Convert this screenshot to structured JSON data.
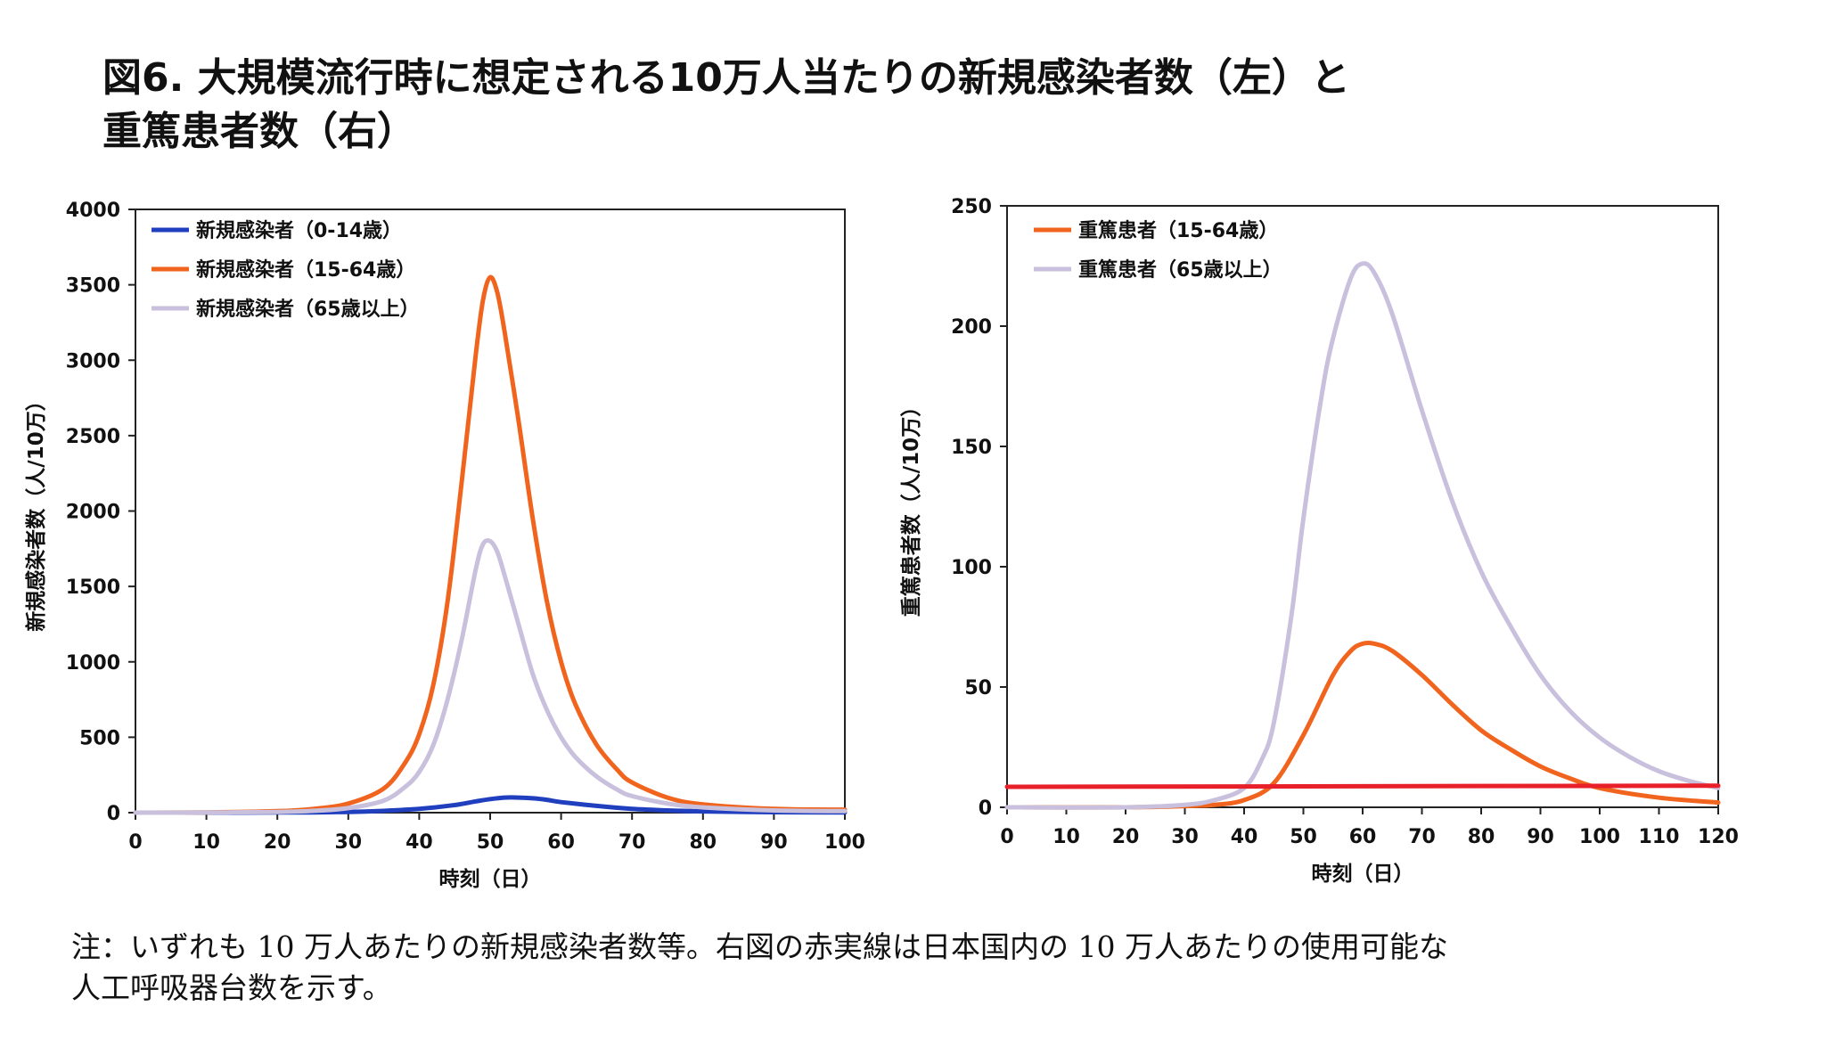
{
  "title_line1": "図6. 大規模流行時に想定される10万人当たりの新規感染者数（左）と",
  "title_line2": "重篤患者数（右）",
  "note_line1": "注：いずれも 10 万人あたりの新規感染者数等。右図の赤実線は日本国内の 10 万人あたりの使用可能な",
  "note_line2": "人工呼吸器台数を示す。",
  "colors": {
    "blue": "#1f3fbf",
    "orange": "#f0641e",
    "lavender": "#c8c0dc",
    "red": "#e8202a"
  },
  "chart_data": [
    {
      "type": "line",
      "ylabel": "新規感染者数（人/10万）",
      "xlabel": "時刻（日）",
      "xlim": [
        0,
        100
      ],
      "ylim": [
        0,
        4000
      ],
      "xticks": [
        0,
        10,
        20,
        30,
        40,
        50,
        60,
        70,
        80,
        90,
        100
      ],
      "yticks": [
        0,
        500,
        1000,
        1500,
        2000,
        2500,
        3000,
        3500,
        4000
      ],
      "legend_position": "top-left",
      "series": [
        {
          "name": "新規感染者（0-14歳）",
          "color": "blue",
          "x": [
            0,
            10,
            20,
            25,
            30,
            35,
            40,
            45,
            48,
            50,
            52,
            54,
            56,
            58,
            60,
            65,
            70,
            75,
            80,
            90,
            100
          ],
          "y": [
            0,
            0,
            1,
            2,
            5,
            12,
            25,
            50,
            75,
            90,
            100,
            100,
            95,
            85,
            70,
            45,
            25,
            15,
            8,
            3,
            1
          ]
        },
        {
          "name": "新規感染者（15-64歳）",
          "color": "orange",
          "x": [
            0,
            10,
            20,
            25,
            30,
            35,
            38,
            40,
            42,
            44,
            46,
            48,
            49,
            50,
            51,
            52,
            54,
            56,
            58,
            60,
            62,
            65,
            68,
            70,
            75,
            80,
            90,
            100
          ],
          "y": [
            0,
            2,
            10,
            25,
            60,
            160,
            330,
            520,
            850,
            1400,
            2200,
            3050,
            3400,
            3550,
            3450,
            3200,
            2600,
            1950,
            1400,
            1000,
            720,
            450,
            280,
            200,
            100,
            55,
            25,
            20
          ]
        },
        {
          "name": "新規感染者（65歳以上）",
          "color": "lavender",
          "x": [
            0,
            10,
            20,
            25,
            30,
            35,
            38,
            40,
            42,
            44,
            46,
            48,
            49,
            50,
            51,
            52,
            54,
            56,
            58,
            60,
            62,
            65,
            68,
            70,
            75,
            80,
            90,
            100
          ],
          "y": [
            0,
            1,
            5,
            12,
            30,
            80,
            170,
            270,
            450,
            750,
            1150,
            1620,
            1780,
            1800,
            1730,
            1580,
            1250,
            920,
            680,
            500,
            370,
            240,
            150,
            110,
            60,
            35,
            15,
            10
          ]
        }
      ]
    },
    {
      "type": "line",
      "ylabel": "重篤患者数（人/10万）",
      "xlabel": "時刻（日）",
      "xlim": [
        0,
        120
      ],
      "ylim": [
        0,
        250
      ],
      "xticks": [
        0,
        10,
        20,
        30,
        40,
        50,
        60,
        70,
        80,
        90,
        100,
        110,
        120
      ],
      "yticks": [
        0,
        50,
        100,
        150,
        200,
        250
      ],
      "legend_position": "top-left",
      "series": [
        {
          "name": "重篤患者（15-64歳）",
          "color": "orange",
          "x": [
            0,
            20,
            30,
            35,
            40,
            45,
            50,
            55,
            58,
            60,
            62,
            65,
            70,
            75,
            80,
            85,
            90,
            95,
            100,
            110,
            120
          ],
          "y": [
            0,
            0,
            0.5,
            1,
            3,
            10,
            30,
            55,
            65,
            68,
            68,
            65,
            55,
            43,
            32,
            24,
            17,
            12,
            8,
            4,
            2
          ]
        },
        {
          "name": "重篤患者（65歳以上）",
          "color": "lavender",
          "x": [
            0,
            20,
            30,
            35,
            40,
            43,
            45,
            48,
            50,
            53,
            55,
            58,
            60,
            62,
            65,
            70,
            75,
            80,
            85,
            90,
            95,
            100,
            105,
            110,
            115,
            120
          ],
          "y": [
            0,
            0,
            1,
            3,
            8,
            20,
            35,
            80,
            120,
            170,
            195,
            220,
            226,
            222,
            205,
            165,
            128,
            98,
            75,
            55,
            40,
            29,
            21,
            15,
            11,
            8
          ]
        },
        {
          "name": "",
          "color": "red",
          "x": [
            0,
            120
          ],
          "y": [
            8.5,
            9
          ]
        }
      ]
    }
  ]
}
